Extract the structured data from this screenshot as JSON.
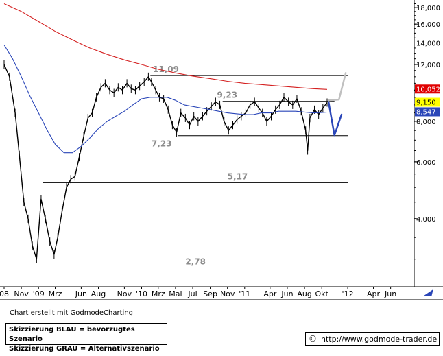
{
  "chart_data": {
    "type": "line",
    "title": "",
    "y_scale": "log",
    "ylim": [
      2.5,
      19.0
    ],
    "y_ticks": [
      4.0,
      6.0,
      8.0,
      10.0,
      12.0,
      14.0,
      16.0,
      18.0
    ],
    "y_tick_labels": [
      "4,000",
      "6,000",
      "8,000",
      "10,000",
      "12,000",
      "14,000",
      "16,000",
      "18,000"
    ],
    "x_range": [
      "2008-09-01",
      "2012-07-01"
    ],
    "x_ticks": [
      {
        "date": "2008-09-01",
        "label": "08"
      },
      {
        "date": "2008-11-01",
        "label": "Nov"
      },
      {
        "date": "2009-01-01",
        "label": "'09"
      },
      {
        "date": "2009-03-01",
        "label": "Mrz"
      },
      {
        "date": "2009-06-01",
        "label": "Jun"
      },
      {
        "date": "2009-08-01",
        "label": "Aug"
      },
      {
        "date": "2009-11-01",
        "label": "Nov"
      },
      {
        "date": "2010-01-01",
        "label": "'10"
      },
      {
        "date": "2010-03-01",
        "label": "Mrz"
      },
      {
        "date": "2010-05-01",
        "label": "Mai"
      },
      {
        "date": "2010-07-01",
        "label": "Jul"
      },
      {
        "date": "2010-09-01",
        "label": "Sep"
      },
      {
        "date": "2010-11-01",
        "label": "Nov"
      },
      {
        "date": "2011-01-01",
        "label": "'11"
      },
      {
        "date": "2011-04-01",
        "label": "Apr"
      },
      {
        "date": "2011-06-01",
        "label": "Jun"
      },
      {
        "date": "2011-08-01",
        "label": "Aug"
      },
      {
        "date": "2011-10-01",
        "label": "Okt"
      },
      {
        "date": "2012-01-01",
        "label": "'12"
      },
      {
        "date": "2012-04-01",
        "label": "Apr"
      },
      {
        "date": "2012-06-01",
        "label": "Jun"
      }
    ],
    "series": [
      {
        "role": "price",
        "color": "#000000",
        "points": [
          {
            "date": "2008-09-01",
            "value": 12.0
          },
          {
            "date": "2008-09-20",
            "value": 11.0
          },
          {
            "date": "2008-10-10",
            "value": 8.5
          },
          {
            "date": "2008-10-25",
            "value": 6.3
          },
          {
            "date": "2008-11-10",
            "value": 4.5
          },
          {
            "date": "2008-11-25",
            "value": 4.0
          },
          {
            "date": "2008-12-10",
            "value": 3.3
          },
          {
            "date": "2008-12-25",
            "value": 3.0
          },
          {
            "date": "2009-01-10",
            "value": 4.6
          },
          {
            "date": "2009-01-25",
            "value": 4.0
          },
          {
            "date": "2009-02-10",
            "value": 3.4
          },
          {
            "date": "2009-02-25",
            "value": 3.1
          },
          {
            "date": "2009-03-10",
            "value": 3.5
          },
          {
            "date": "2009-03-25",
            "value": 4.2
          },
          {
            "date": "2009-04-10",
            "value": 5.0
          },
          {
            "date": "2009-04-25",
            "value": 5.3
          },
          {
            "date": "2009-05-10",
            "value": 5.4
          },
          {
            "date": "2009-05-25",
            "value": 6.2
          },
          {
            "date": "2009-06-10",
            "value": 7.2
          },
          {
            "date": "2009-06-25",
            "value": 8.2
          },
          {
            "date": "2009-07-10",
            "value": 8.5
          },
          {
            "date": "2009-07-25",
            "value": 9.5
          },
          {
            "date": "2009-08-10",
            "value": 10.2
          },
          {
            "date": "2009-08-25",
            "value": 10.5
          },
          {
            "date": "2009-09-10",
            "value": 10.0
          },
          {
            "date": "2009-09-25",
            "value": 9.8
          },
          {
            "date": "2009-10-10",
            "value": 10.2
          },
          {
            "date": "2009-10-25",
            "value": 10.0
          },
          {
            "date": "2009-11-10",
            "value": 10.5
          },
          {
            "date": "2009-11-25",
            "value": 10.1
          },
          {
            "date": "2009-12-10",
            "value": 10.0
          },
          {
            "date": "2009-12-25",
            "value": 10.3
          },
          {
            "date": "2010-01-10",
            "value": 10.6
          },
          {
            "date": "2010-01-25",
            "value": 11.0
          },
          {
            "date": "2010-02-05",
            "value": 10.6
          },
          {
            "date": "2010-02-20",
            "value": 10.0
          },
          {
            "date": "2010-03-05",
            "value": 9.5
          },
          {
            "date": "2010-03-20",
            "value": 9.4
          },
          {
            "date": "2010-04-05",
            "value": 8.7
          },
          {
            "date": "2010-04-20",
            "value": 7.8
          },
          {
            "date": "2010-05-05",
            "value": 7.4
          },
          {
            "date": "2010-05-20",
            "value": 8.5
          },
          {
            "date": "2010-06-05",
            "value": 8.2
          },
          {
            "date": "2010-06-20",
            "value": 7.8
          },
          {
            "date": "2010-07-05",
            "value": 8.3
          },
          {
            "date": "2010-07-20",
            "value": 8.0
          },
          {
            "date": "2010-08-05",
            "value": 8.3
          },
          {
            "date": "2010-08-20",
            "value": 8.6
          },
          {
            "date": "2010-09-05",
            "value": 8.9
          },
          {
            "date": "2010-09-20",
            "value": 9.2
          },
          {
            "date": "2010-10-05",
            "value": 9.0
          },
          {
            "date": "2010-10-20",
            "value": 8.0
          },
          {
            "date": "2010-11-05",
            "value": 7.5
          },
          {
            "date": "2010-11-20",
            "value": 7.8
          },
          {
            "date": "2010-12-05",
            "value": 8.1
          },
          {
            "date": "2010-12-20",
            "value": 8.3
          },
          {
            "date": "2011-01-05",
            "value": 8.5
          },
          {
            "date": "2011-01-20",
            "value": 9.0
          },
          {
            "date": "2011-02-05",
            "value": 9.2
          },
          {
            "date": "2011-02-20",
            "value": 8.8
          },
          {
            "date": "2011-03-05",
            "value": 8.5
          },
          {
            "date": "2011-03-20",
            "value": 8.0
          },
          {
            "date": "2011-04-05",
            "value": 8.3
          },
          {
            "date": "2011-04-20",
            "value": 8.7
          },
          {
            "date": "2011-05-05",
            "value": 9.0
          },
          {
            "date": "2011-05-20",
            "value": 9.5
          },
          {
            "date": "2011-06-05",
            "value": 9.2
          },
          {
            "date": "2011-06-20",
            "value": 9.0
          },
          {
            "date": "2011-07-05",
            "value": 9.4
          },
          {
            "date": "2011-07-20",
            "value": 8.6
          },
          {
            "date": "2011-08-05",
            "value": 7.5
          },
          {
            "date": "2011-08-12",
            "value": 6.5
          },
          {
            "date": "2011-08-20",
            "value": 8.2
          },
          {
            "date": "2011-09-05",
            "value": 8.7
          },
          {
            "date": "2011-09-20",
            "value": 8.4
          },
          {
            "date": "2011-10-05",
            "value": 8.8
          },
          {
            "date": "2011-10-20",
            "value": 9.15
          }
        ]
      },
      {
        "role": "moving-average-blue",
        "color": "#2a46b8",
        "points": [
          {
            "date": "2008-09-01",
            "value": 13.8
          },
          {
            "date": "2008-10-01",
            "value": 12.5
          },
          {
            "date": "2008-11-01",
            "value": 11.0
          },
          {
            "date": "2008-12-01",
            "value": 9.6
          },
          {
            "date": "2009-01-01",
            "value": 8.5
          },
          {
            "date": "2009-02-01",
            "value": 7.5
          },
          {
            "date": "2009-03-01",
            "value": 6.8
          },
          {
            "date": "2009-04-01",
            "value": 6.4
          },
          {
            "date": "2009-05-01",
            "value": 6.4
          },
          {
            "date": "2009-06-01",
            "value": 6.7
          },
          {
            "date": "2009-07-01",
            "value": 7.1
          },
          {
            "date": "2009-08-01",
            "value": 7.6
          },
          {
            "date": "2009-09-01",
            "value": 8.0
          },
          {
            "date": "2009-10-01",
            "value": 8.3
          },
          {
            "date": "2009-11-01",
            "value": 8.6
          },
          {
            "date": "2009-12-01",
            "value": 9.0
          },
          {
            "date": "2010-01-01",
            "value": 9.4
          },
          {
            "date": "2010-02-01",
            "value": 9.5
          },
          {
            "date": "2010-03-01",
            "value": 9.5
          },
          {
            "date": "2010-04-01",
            "value": 9.5
          },
          {
            "date": "2010-05-01",
            "value": 9.3
          },
          {
            "date": "2010-06-01",
            "value": 9.0
          },
          {
            "date": "2010-07-01",
            "value": 8.9
          },
          {
            "date": "2010-08-01",
            "value": 8.8
          },
          {
            "date": "2010-09-01",
            "value": 8.7
          },
          {
            "date": "2010-10-01",
            "value": 8.6
          },
          {
            "date": "2010-11-01",
            "value": 8.5
          },
          {
            "date": "2010-12-01",
            "value": 8.45
          },
          {
            "date": "2011-01-01",
            "value": 8.4
          },
          {
            "date": "2011-02-01",
            "value": 8.4
          },
          {
            "date": "2011-03-01",
            "value": 8.5
          },
          {
            "date": "2011-04-01",
            "value": 8.5
          },
          {
            "date": "2011-05-01",
            "value": 8.6
          },
          {
            "date": "2011-06-01",
            "value": 8.6
          },
          {
            "date": "2011-07-01",
            "value": 8.6
          },
          {
            "date": "2011-08-01",
            "value": 8.55
          },
          {
            "date": "2011-09-01",
            "value": 8.5
          },
          {
            "date": "2011-10-01",
            "value": 8.52
          },
          {
            "date": "2011-10-20",
            "value": 8.547
          }
        ]
      },
      {
        "role": "moving-average-red",
        "color": "#d42020",
        "points": [
          {
            "date": "2008-09-01",
            "value": 18.5
          },
          {
            "date": "2008-11-01",
            "value": 17.5
          },
          {
            "date": "2009-01-01",
            "value": 16.3
          },
          {
            "date": "2009-03-01",
            "value": 15.2
          },
          {
            "date": "2009-05-01",
            "value": 14.3
          },
          {
            "date": "2009-07-01",
            "value": 13.5
          },
          {
            "date": "2009-09-01",
            "value": 12.9
          },
          {
            "date": "2009-11-01",
            "value": 12.4
          },
          {
            "date": "2010-01-01",
            "value": 12.0
          },
          {
            "date": "2010-03-01",
            "value": 11.6
          },
          {
            "date": "2010-05-01",
            "value": 11.3
          },
          {
            "date": "2010-07-01",
            "value": 11.05
          },
          {
            "date": "2010-09-01",
            "value": 10.85
          },
          {
            "date": "2010-11-01",
            "value": 10.65
          },
          {
            "date": "2011-01-01",
            "value": 10.5
          },
          {
            "date": "2011-03-01",
            "value": 10.4
          },
          {
            "date": "2011-05-01",
            "value": 10.3
          },
          {
            "date": "2011-07-01",
            "value": 10.2
          },
          {
            "date": "2011-09-01",
            "value": 10.1
          },
          {
            "date": "2011-10-20",
            "value": 10.052
          }
        ]
      }
    ],
    "horizontal_levels": [
      {
        "value": 11.09,
        "label": "11,09",
        "from": "2010-02-01",
        "to": "2012-01-01"
      },
      {
        "value": 9.23,
        "label": "9,23",
        "from": "2010-10-15",
        "to": "2011-11-15"
      },
      {
        "value": 7.23,
        "label": "7,23",
        "from": "2010-05-10",
        "to": "2012-01-01"
      },
      {
        "value": 5.17,
        "label": "5,17",
        "from": "2009-01-15",
        "to": "2012-01-01"
      },
      {
        "value": 2.78,
        "label": "2,78",
        "from": null,
        "to": null
      }
    ],
    "scenarios": [
      {
        "name": "Skizzierung BLAU = bevorzugtes Szenario",
        "color": "#2a46b8",
        "points": [
          {
            "date": "2011-10-25",
            "value": 9.2
          },
          {
            "date": "2011-11-15",
            "value": 7.25
          },
          {
            "date": "2011-12-10",
            "value": 8.4
          }
        ]
      },
      {
        "name": "Skizzierung GRAU = Alternativszenario",
        "color": "#c0c0c0",
        "points": [
          {
            "date": "2011-10-25",
            "value": 9.3
          },
          {
            "date": "2011-12-01",
            "value": 9.35
          },
          {
            "date": "2011-12-25",
            "value": 11.3
          }
        ]
      }
    ],
    "price_badges": [
      {
        "value": 10.052,
        "label": "10,052",
        "bg": "#e00000",
        "fg": "#ffffff"
      },
      {
        "value": 9.15,
        "label": "9,150",
        "bg": "#ffff00",
        "fg": "#000000"
      },
      {
        "value": 8.547,
        "label": "8,547",
        "bg": "#2a46b8",
        "fg": "#ffffff"
      }
    ],
    "grid": false,
    "legend": "bottom-left"
  },
  "footer": {
    "credit": "Chart erstellt mit GodmodeCharting",
    "legend_blue": "Skizzierung BLAU = bevorzugtes Szenario",
    "legend_gray": "Skizzierung GRAU = Alternativszenario",
    "copyright_symbol": "©",
    "url": "http://www.godmode-trader.de"
  }
}
